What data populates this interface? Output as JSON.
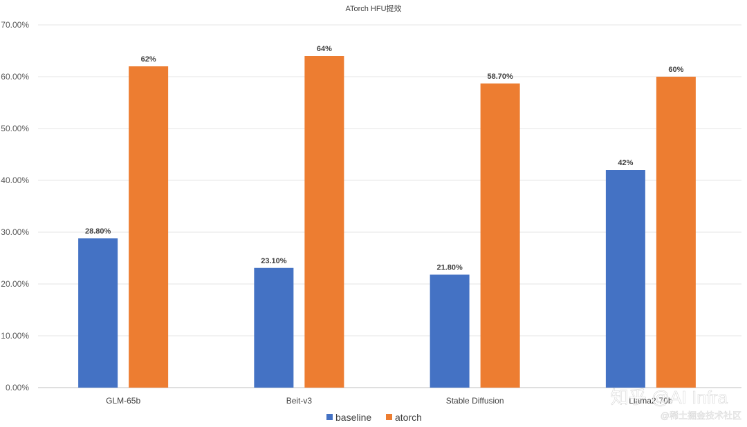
{
  "chart_data": {
    "type": "bar",
    "title": "ATorch HFU提效",
    "xlabel": "",
    "ylabel": "",
    "categories": [
      "GLM-65b",
      "Beit-v3",
      "Stable Diffusion",
      "Llama2-70b"
    ],
    "series": [
      {
        "name": "baseline",
        "color": "#4472C4",
        "values": [
          28.8,
          23.1,
          21.8,
          42
        ],
        "labels": [
          "28.80%",
          "23.10%",
          "21.80%",
          "42%"
        ]
      },
      {
        "name": "atorch",
        "color": "#ED7D31",
        "values": [
          62,
          64,
          58.7,
          60
        ],
        "labels": [
          "62%",
          "64%",
          "58.70%",
          "60%"
        ]
      }
    ],
    "ylim": [
      0,
      70
    ],
    "yticks": [
      "0.00%",
      "10.00%",
      "20.00%",
      "30.00%",
      "40.00%",
      "50.00%",
      "60.00%",
      "70.00%"
    ],
    "grid": true,
    "legend_position": "bottom"
  },
  "watermark": {
    "main": "知乎 @AI Infra",
    "sub": "@稀土掘金技术社区"
  }
}
